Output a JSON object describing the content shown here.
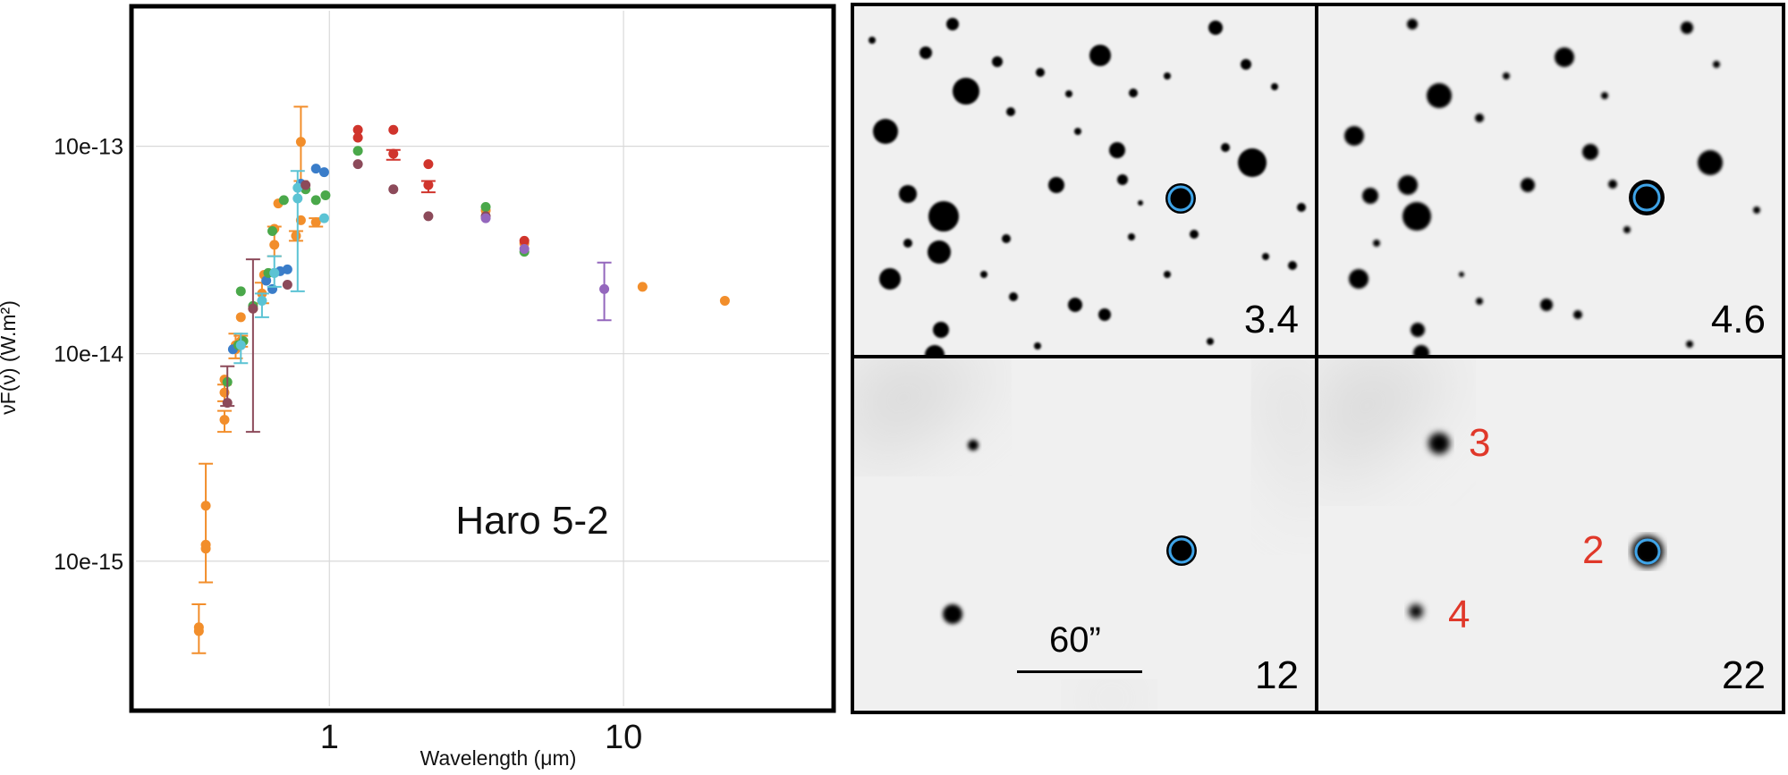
{
  "chart_data": {
    "type": "scatter",
    "xscale": "log",
    "yscale": "log",
    "xlim": [
      0.22,
      50
    ],
    "ylim": [
      2e-16,
      4.5e-13
    ],
    "xlabel": "Wavelength (μm)",
    "ylabel": "νF(ν) (W.m²)",
    "x_ticks": [
      {
        "value": 1,
        "label": "1"
      },
      {
        "value": 10,
        "label": "10"
      }
    ],
    "y_ticks": [
      {
        "value": 1e-13,
        "label": "10e-13"
      },
      {
        "value": 1e-14,
        "label": "10e-14"
      },
      {
        "value": 1e-15,
        "label": "10e-15"
      }
    ],
    "grid": true,
    "annotation": "Haro 5-2",
    "colors": {
      "orange": "#f28e2b",
      "blue": "#3a7dc9",
      "green": "#4aa84a",
      "cyan": "#5bc3d4",
      "red": "#d0342c",
      "maroon": "#8c4a5a",
      "purple": "#9467bd"
    },
    "series": [
      {
        "color": "orange",
        "points": [
          {
            "x": 0.36,
            "y": 4.8e-16,
            "ylo": 3.6e-16,
            "yhi": 6.2e-16
          },
          {
            "x": 0.36,
            "y": 4.6e-16
          },
          {
            "x": 0.38,
            "y": 1.85e-15
          },
          {
            "x": 0.38,
            "y": 1.15e-15,
            "ylo": 7.9e-16,
            "yhi": 2.95e-15
          },
          {
            "x": 0.38,
            "y": 1.2e-15
          },
          {
            "x": 0.44,
            "y": 4.8e-15,
            "ylo": 4.2e-15,
            "yhi": 5.3e-15
          },
          {
            "x": 0.44,
            "y": 6.5e-15,
            "ylo": 5.9e-15,
            "yhi": 7.1e-15
          },
          {
            "x": 0.44,
            "y": 7.5e-15
          },
          {
            "x": 0.48,
            "y": 1.05e-14,
            "ylo": 9.5e-15,
            "yhi": 1.25e-14
          },
          {
            "x": 0.48,
            "y": 1.1e-14
          },
          {
            "x": 0.5,
            "y": 1.15e-14,
            "ylo": 1.08e-14,
            "yhi": 1.22e-14
          },
          {
            "x": 0.5,
            "y": 1.5e-14
          },
          {
            "x": 0.55,
            "y": 1.65e-14
          },
          {
            "x": 0.59,
            "y": 1.95e-14,
            "ylo": 1.75e-14,
            "yhi": 2.2e-14
          },
          {
            "x": 0.6,
            "y": 2.4e-14
          },
          {
            "x": 0.65,
            "y": 3.35e-14,
            "ylo": 2.95e-14,
            "yhi": 4.1e-14
          },
          {
            "x": 0.65,
            "y": 4e-14
          },
          {
            "x": 0.67,
            "y": 5.3e-14
          },
          {
            "x": 0.77,
            "y": 3.7e-14,
            "ylo": 3.5e-14,
            "yhi": 3.9e-14
          },
          {
            "x": 0.8,
            "y": 1.05e-13,
            "ylo": 6.8e-14,
            "yhi": 1.55e-13
          },
          {
            "x": 0.8,
            "y": 4.4e-14
          },
          {
            "x": 0.9,
            "y": 4.3e-14,
            "ylo": 4.1e-14,
            "yhi": 4.5e-14
          },
          {
            "x": 3.4,
            "y": 4.9e-14
          },
          {
            "x": 4.6,
            "y": 3.4e-14
          },
          {
            "x": 11.6,
            "y": 2.1e-14
          },
          {
            "x": 22.1,
            "y": 1.8e-14
          }
        ]
      },
      {
        "color": "blue",
        "points": [
          {
            "x": 0.47,
            "y": 1.05e-14
          },
          {
            "x": 0.5,
            "y": 1.1e-14
          },
          {
            "x": 0.61,
            "y": 2.25e-14
          },
          {
            "x": 0.64,
            "y": 2.05e-14
          },
          {
            "x": 0.65,
            "y": 2.45e-14
          },
          {
            "x": 0.68,
            "y": 2.5e-14
          },
          {
            "x": 0.72,
            "y": 2.55e-14
          },
          {
            "x": 0.8,
            "y": 6.6e-14
          },
          {
            "x": 0.9,
            "y": 7.8e-14
          },
          {
            "x": 0.96,
            "y": 7.5e-14
          }
        ]
      },
      {
        "color": "green",
        "points": [
          {
            "x": 0.45,
            "y": 7.3e-15
          },
          {
            "x": 0.49,
            "y": 1.1e-14
          },
          {
            "x": 0.5,
            "y": 2e-14
          },
          {
            "x": 0.51,
            "y": 1.15e-14
          },
          {
            "x": 0.55,
            "y": 1.7e-14
          },
          {
            "x": 0.62,
            "y": 2.45e-14
          },
          {
            "x": 0.64,
            "y": 3.9e-14
          },
          {
            "x": 0.7,
            "y": 5.5e-14
          },
          {
            "x": 0.83,
            "y": 6.2e-14
          },
          {
            "x": 0.9,
            "y": 5.5e-14
          },
          {
            "x": 0.97,
            "y": 5.8e-14
          },
          {
            "x": 1.25,
            "y": 9.5e-14
          },
          {
            "x": 3.4,
            "y": 5.1e-14
          },
          {
            "x": 4.6,
            "y": 3.1e-14
          }
        ]
      },
      {
        "color": "cyan",
        "points": [
          {
            "x": 0.5,
            "y": 1.1e-14,
            "ylo": 9e-15,
            "yhi": 1.25e-14
          },
          {
            "x": 0.59,
            "y": 1.8e-14,
            "ylo": 1.5e-14,
            "yhi": 1.95e-14
          },
          {
            "x": 0.65,
            "y": 2.45e-14,
            "ylo": 2.1e-14,
            "yhi": 2.95e-14
          },
          {
            "x": 0.78,
            "y": 5.6e-14,
            "ylo": 2e-14,
            "yhi": 7.6e-14
          },
          {
            "x": 0.78,
            "y": 6.3e-14
          },
          {
            "x": 0.96,
            "y": 4.5e-14
          }
        ]
      },
      {
        "color": "red",
        "points": [
          {
            "x": 1.25,
            "y": 1.2e-13
          },
          {
            "x": 1.25,
            "y": 1.1e-13
          },
          {
            "x": 1.65,
            "y": 1.2e-13
          },
          {
            "x": 1.65,
            "y": 9.2e-14,
            "ylo": 8.6e-14,
            "yhi": 9.6e-14
          },
          {
            "x": 2.17,
            "y": 8.2e-14
          },
          {
            "x": 2.17,
            "y": 6.5e-14,
            "ylo": 6e-14,
            "yhi": 6.8e-14
          },
          {
            "x": 4.6,
            "y": 3.5e-14
          }
        ]
      },
      {
        "color": "maroon",
        "points": [
          {
            "x": 0.45,
            "y": 5.8e-15,
            "ylo": 5.6e-15,
            "yhi": 8.7e-15
          },
          {
            "x": 0.55,
            "y": 1.65e-14,
            "ylo": 4.2e-15,
            "yhi": 2.85e-14
          },
          {
            "x": 0.72,
            "y": 2.15e-14
          },
          {
            "x": 0.83,
            "y": 6.5e-14
          },
          {
            "x": 1.25,
            "y": 8.2e-14
          },
          {
            "x": 1.65,
            "y": 6.2e-14
          },
          {
            "x": 2.17,
            "y": 4.6e-14
          },
          {
            "x": 3.4,
            "y": 4.6e-14
          }
        ]
      },
      {
        "color": "purple",
        "points": [
          {
            "x": 3.4,
            "y": 4.5e-14
          },
          {
            "x": 4.6,
            "y": 3.2e-14
          },
          {
            "x": 8.6,
            "y": 2.05e-14,
            "ylo": 1.45e-14,
            "yhi": 2.75e-14
          }
        ]
      }
    ]
  },
  "image_panels": [
    {
      "band": "3.4"
    },
    {
      "band": "4.6"
    },
    {
      "band": "12",
      "scale_bar_label": "60”"
    },
    {
      "band": "22",
      "source_labels": [
        "3",
        "2",
        "4"
      ]
    }
  ]
}
